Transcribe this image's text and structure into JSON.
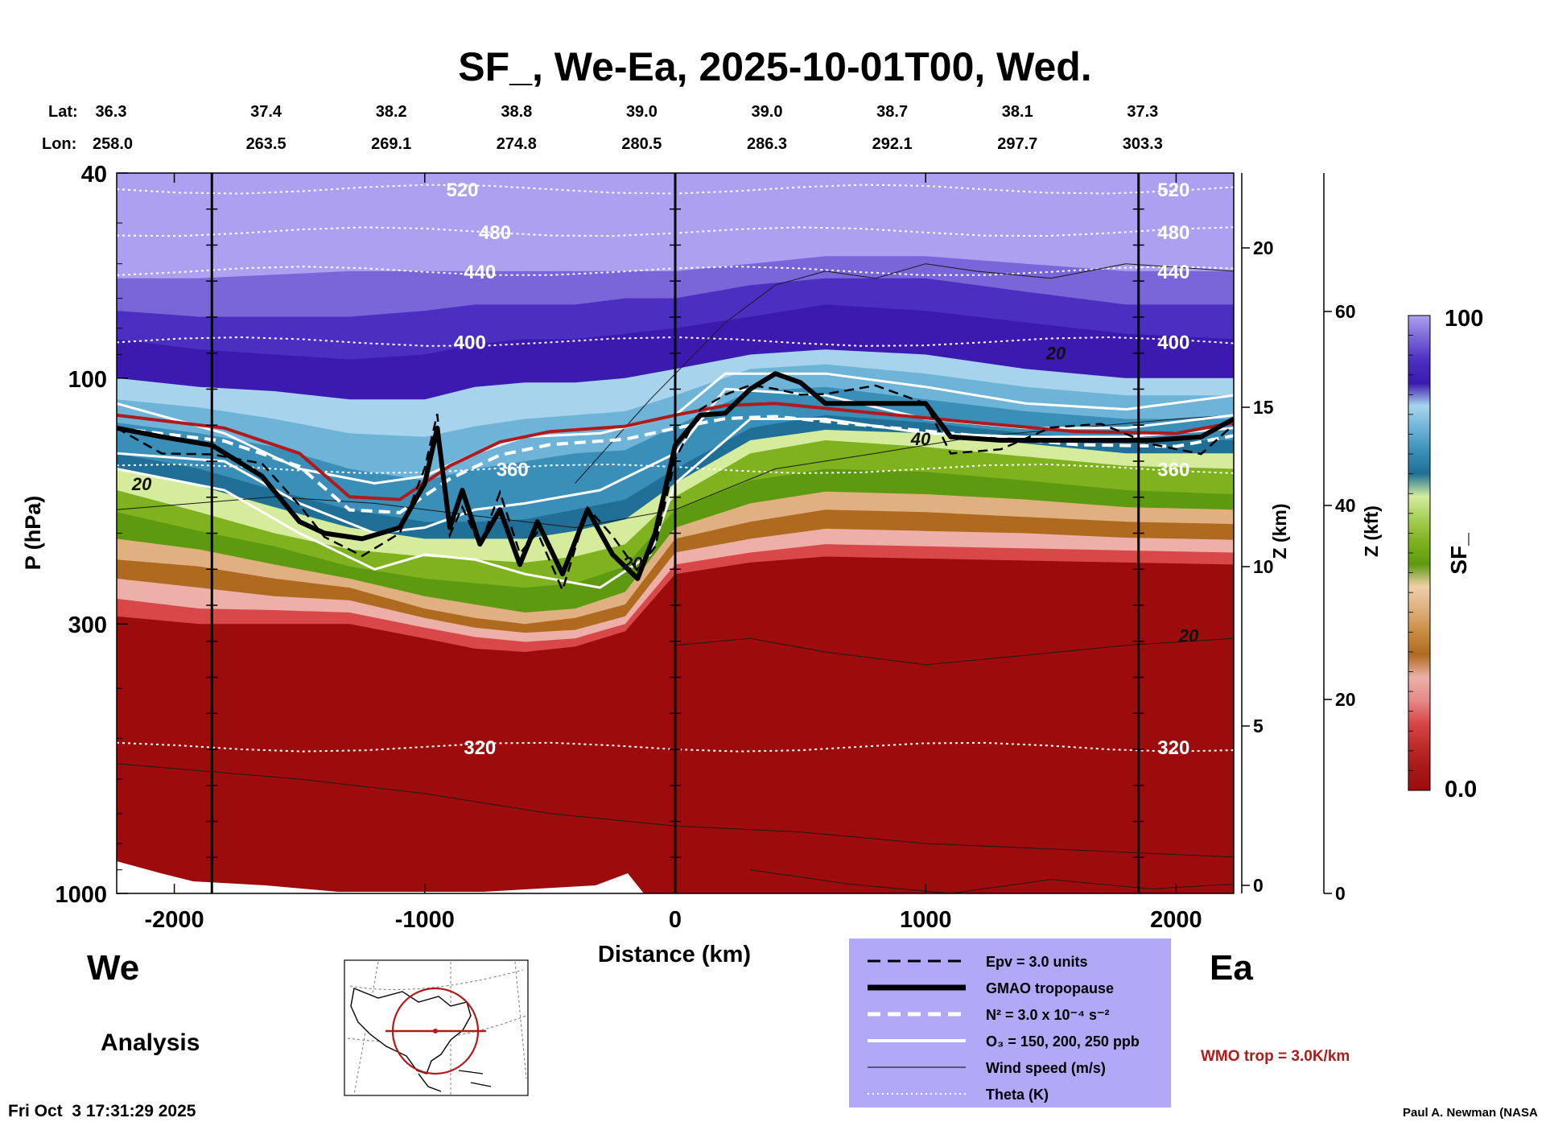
{
  "chart_data": {
    "type": "heatmap",
    "title": "SF_, We-Ea, 2025-10-01T00, Wed.",
    "xlabel": "Distance (km)",
    "ylabel": "P (hPa)",
    "zkm_label": "Z (km)",
    "zkft_label": "Z (kft)",
    "colorbar_label": "SF_",
    "x_ticks": [
      -2000,
      -1000,
      0,
      1000,
      2000
    ],
    "x_tick_labels": [
      "-2000",
      "-1000",
      "0",
      "1000",
      "2000"
    ],
    "xlim": [
      -2230,
      2230
    ],
    "y_ticks": [
      40,
      100,
      300,
      1000
    ],
    "y_tick_labels": [
      "40",
      "100",
      "300",
      "1000"
    ],
    "ylim": [
      1000,
      40
    ],
    "y_scale": "log",
    "zkm_ticks": [
      0,
      5,
      10,
      15,
      20
    ],
    "zkm_tick_labels": [
      "0",
      "5",
      "10",
      "15",
      "20"
    ],
    "zkft_ticks": [
      0,
      20,
      40,
      60
    ],
    "zkft_tick_labels": [
      "0",
      "20",
      "40",
      "60"
    ],
    "colorbar_range": [
      0.0,
      100
    ],
    "colorbar_labels": [
      "100",
      "0.0"
    ],
    "lat_label": "Lat:",
    "lon_label": "Lon:",
    "lat_values": [
      "36.3",
      "37.4",
      "38.2",
      "38.8",
      "39.0",
      "39.0",
      "38.7",
      "38.1",
      "37.3"
    ],
    "lon_values": [
      "258.0",
      "263.5",
      "269.1",
      "274.8",
      "280.5",
      "286.3",
      "292.1",
      "297.7",
      "303.3"
    ],
    "lat_lon_x": [
      -2230,
      -1730,
      -1230,
      -730,
      -230,
      270,
      770,
      1270,
      1770
    ],
    "vertical_markers_x": [
      -1850,
      0,
      1850
    ],
    "theta_contours": [
      {
        "label": "520",
        "p": 43,
        "label_x": -850
      },
      {
        "label": "480",
        "p": 52,
        "label_x": -720
      },
      {
        "label": "440",
        "p": 62,
        "label_x": -780
      },
      {
        "label": "400",
        "p": 85,
        "label_x": -820
      },
      {
        "label": "360",
        "p": 150,
        "label_x": -650
      },
      {
        "label": "320",
        "p": 520,
        "label_x": -780
      }
    ],
    "theta_right_labels": [
      "520",
      "480",
      "440",
      "400",
      "360",
      "320"
    ],
    "wind_labels": [
      "20",
      "20",
      "40",
      "20",
      "20"
    ],
    "wind_label_pos": [
      {
        "x": -2130,
        "p": 165
      },
      {
        "x": 1520,
        "p": 92
      },
      {
        "x": 980,
        "p": 135
      },
      {
        "x": -170,
        "p": 235
      },
      {
        "x": 2050,
        "p": 325
      }
    ],
    "gmao_tropopause": {
      "x": [
        -2230,
        -2050,
        -1850,
        -1650,
        -1500,
        -1400,
        -1250,
        -1100,
        -1000,
        -950,
        -900,
        -850,
        -780,
        -700,
        -620,
        -550,
        -450,
        -350,
        -250,
        -150,
        -80,
        0,
        100,
        200,
        300,
        400,
        500,
        600,
        800,
        1000,
        1100,
        1300,
        1500,
        1700,
        1900,
        2100,
        2230
      ],
      "p": [
        125,
        130,
        135,
        155,
        190,
        200,
        205,
        195,
        160,
        125,
        195,
        165,
        210,
        180,
        230,
        190,
        240,
        180,
        220,
        245,
        200,
        135,
        118,
        117,
        105,
        98,
        102,
        112,
        112,
        112,
        130,
        132,
        132,
        132,
        132,
        130,
        120
      ]
    },
    "wmo_tropopause": {
      "x": [
        -2230,
        -1800,
        -1500,
        -1300,
        -1100,
        -900,
        -700,
        -500,
        -200,
        0,
        200,
        400,
        800,
        1200,
        1600,
        2000,
        2230
      ],
      "p": [
        118,
        125,
        140,
        170,
        172,
        148,
        133,
        127,
        124,
        118,
        113,
        112,
        117,
        122,
        127,
        128,
        122
      ]
    },
    "ozone_contours": [
      {
        "label": "150 ppb",
        "x": [
          -2230,
          -1800,
          -1500,
          -1200,
          -1000,
          -800,
          -600,
          -300,
          0,
          200,
          600,
          1000,
          1400,
          1800,
          2230
        ],
        "p": [
          140,
          145,
          175,
          200,
          195,
          180,
          175,
          165,
          140,
          105,
          108,
          120,
          125,
          125,
          118
        ]
      },
      {
        "label": "200 ppb",
        "x": [
          -2230,
          -1800,
          -1500,
          -1200,
          -1000,
          -800,
          -600,
          -300,
          0,
          200,
          600,
          1000,
          1400,
          1800,
          2230
        ],
        "p": [
          112,
          128,
          150,
          160,
          155,
          140,
          130,
          128,
          118,
          98,
          98,
          104,
          112,
          115,
          108
        ]
      },
      {
        "label": "250 ppb",
        "x": [
          -2230,
          -1800,
          -1500,
          -1200,
          -1000,
          -800,
          -600,
          -300,
          -100,
          0,
          300,
          600,
          1000,
          1400,
          1800,
          2230
        ],
        "p": [
          150,
          165,
          200,
          235,
          220,
          225,
          240,
          255,
          220,
          160,
          120,
          120,
          128,
          130,
          130,
          125
        ]
      }
    ],
    "colormap": [
      "#9c0c0c",
      "#a81818",
      "#c02c2c",
      "#d84848",
      "#e68a8a",
      "#ecb0a8",
      "#b06a20",
      "#c88c40",
      "#e0b080",
      "#f0d0a8",
      "#5e9a10",
      "#7fb21f",
      "#a6ce54",
      "#d4ec9c",
      "#1f6f96",
      "#3a8fb8",
      "#6db4d8",
      "#a7d4ec",
      "#3c1ab0",
      "#4b2fc0",
      "#7a66d8",
      "#aea0f0"
    ],
    "legend": {
      "items": [
        {
          "label": "Epv = 3.0 units"
        },
        {
          "label": "GMAO tropopause"
        },
        {
          "label": "N² = 3.0 x 10⁻⁴ s⁻²"
        },
        {
          "label": "O₃ = 150, 200, 250 ppb"
        },
        {
          "label": "Wind speed (m/s)"
        },
        {
          "label": "Theta (K)"
        }
      ],
      "background": "#b1a9f8",
      "placement": "bottom-center"
    },
    "wmo_label": "WMO trop = 3.0K/km",
    "wmo_color": "#b01a1a",
    "left_direction": "We",
    "right_direction": "Ea",
    "analysis_label": "Analysis",
    "timestamp": "Fri Oct  3 17:31:29 2025",
    "credit": "Paul A. Newman (NASA"
  }
}
